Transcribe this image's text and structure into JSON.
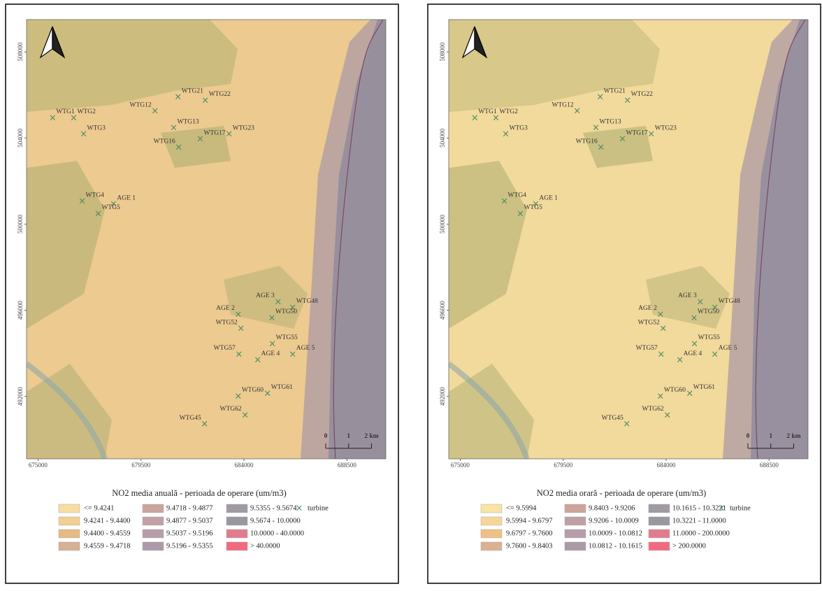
{
  "turbines": [
    {
      "label": "WTG1",
      "x": 675640,
      "y": 504920
    },
    {
      "label": "WTG2",
      "x": 676560,
      "y": 504920
    },
    {
      "label": "WTG3",
      "x": 676990,
      "y": 504170
    },
    {
      "label": "WTG12",
      "x": 680110,
      "y": 505240
    },
    {
      "label": "WTG21",
      "x": 681120,
      "y": 505890
    },
    {
      "label": "WTG22",
      "x": 682310,
      "y": 505730
    },
    {
      "label": "WTG13",
      "x": 680930,
      "y": 504460
    },
    {
      "label": "WTG16",
      "x": 681150,
      "y": 503550
    },
    {
      "label": "WTG17",
      "x": 682090,
      "y": 503940
    },
    {
      "label": "WTG23",
      "x": 683350,
      "y": 504170
    },
    {
      "label": "WTG4",
      "x": 676930,
      "y": 501050
    },
    {
      "label": "AGE 1",
      "x": 678300,
      "y": 500920
    },
    {
      "label": "WTG5",
      "x": 677630,
      "y": 500470
    },
    {
      "label": "AGE 3",
      "x": 685490,
      "y": 496380
    },
    {
      "label": "WTG48",
      "x": 686130,
      "y": 496120
    },
    {
      "label": "AGE 2",
      "x": 683750,
      "y": 495790
    },
    {
      "label": "WTG50",
      "x": 685220,
      "y": 495630
    },
    {
      "label": "WTG52",
      "x": 683870,
      "y": 495140
    },
    {
      "label": "WTG55",
      "x": 685240,
      "y": 494430
    },
    {
      "label": "WTG57",
      "x": 683780,
      "y": 493940
    },
    {
      "label": "AGE 4",
      "x": 684600,
      "y": 493680
    },
    {
      "label": "AGE 5",
      "x": 686130,
      "y": 493940
    },
    {
      "label": "WTG60",
      "x": 683750,
      "y": 491990
    },
    {
      "label": "WTG61",
      "x": 685030,
      "y": 492120
    },
    {
      "label": "WTG62",
      "x": 684050,
      "y": 491120
    },
    {
      "label": "WTG45",
      "x": 682280,
      "y": 490700
    }
  ],
  "map": {
    "xlim": [
      674500,
      690200
    ],
    "ylim": [
      489100,
      509500
    ],
    "xticks": [
      675000,
      679500,
      684000,
      688500
    ],
    "yticks": [
      492000,
      496000,
      500000,
      504000,
      508000
    ],
    "scale_bar": [
      0,
      1,
      {
        "value": 2,
        "label": "2 km"
      }
    ]
  },
  "panels": [
    {
      "legend_title": "NO2 media anuală - perioada de operare (um/m3)",
      "turbine_label": "turbine",
      "legend": [
        {
          "label": "<= 9.4241",
          "color": "#f8dca2"
        },
        {
          "label": "9.4241 - 9.4400",
          "color": "#f2ce92"
        },
        {
          "label": "9.4400 - 9.4559",
          "color": "#e6ba84"
        },
        {
          "label": "9.4559 - 9.4718",
          "color": "#d8b094"
        },
        {
          "label": "9.4718 - 9.4877",
          "color": "#cba59c"
        },
        {
          "label": "9.4877 - 9.5037",
          "color": "#c2a1a6"
        },
        {
          "label": "9.5037 - 9.5196",
          "color": "#b79ea9"
        },
        {
          "label": "9.5196 - 9.5355",
          "color": "#ab9ba8"
        },
        {
          "label": "9.5355 - 9.5674",
          "color": "#a09aa3"
        },
        {
          "label": "9.5674 - 10.0000",
          "color": "#9899a0"
        },
        {
          "label": "10.0000 - 40.0000",
          "color": "#e17c8c"
        },
        {
          "label": "> 40.0000",
          "color": "#f36a80"
        }
      ]
    },
    {
      "legend_title": "NO2 media orară - perioada de operare (um/m3)",
      "turbine_label": "turbine",
      "legend": [
        {
          "label": "<= 9.5994",
          "color": "#f8e4a4"
        },
        {
          "label": "9.5994 - 9.6797",
          "color": "#f6d698"
        },
        {
          "label": "9.6797 - 9.7600",
          "color": "#efc184"
        },
        {
          "label": "9.7600 - 9.8403",
          "color": "#dcb092"
        },
        {
          "label": "9.8403 - 9.9206",
          "color": "#cca59a"
        },
        {
          "label": "9.9206 - 10.0009",
          "color": "#c1a0a5"
        },
        {
          "label": "10.0009 - 10.0812",
          "color": "#b69da9"
        },
        {
          "label": "10.0812 - 10.1615",
          "color": "#aa9ba7"
        },
        {
          "label": "10.1615 - 10.3221",
          "color": "#a09aa3"
        },
        {
          "label": "10.3221 - 11.0000",
          "color": "#9899a0"
        },
        {
          "label": "11.0000 - 200.0000",
          "color": "#e17c8c"
        },
        {
          "label": "> 200.0000",
          "color": "#f36a80"
        }
      ]
    }
  ]
}
